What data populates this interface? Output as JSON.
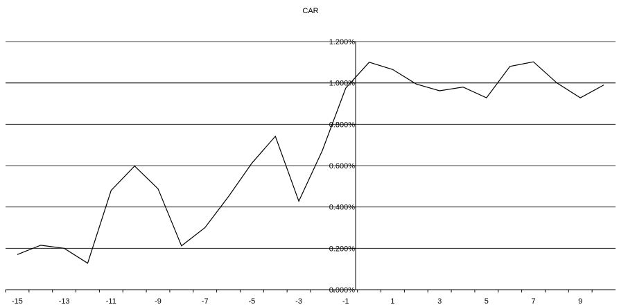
{
  "chart_data": {
    "type": "line",
    "title": "CAR",
    "xlabel": "",
    "ylabel": "",
    "x": [
      -15,
      -14,
      -13,
      -12,
      -11,
      -10,
      -9,
      -8,
      -7,
      -6,
      -5,
      -4,
      -3,
      -2,
      -1,
      0,
      1,
      2,
      3,
      4,
      5,
      6,
      7,
      8,
      9,
      10
    ],
    "series": [
      {
        "values": [
          0.17,
          0.215,
          0.2,
          0.128,
          0.48,
          0.598,
          0.488,
          0.212,
          0.3,
          0.45,
          0.612,
          0.742,
          0.428,
          0.672,
          0.975,
          1.1,
          1.065,
          0.995,
          0.962,
          0.98,
          0.928,
          1.08,
          1.102,
          1.0,
          0.928,
          0.99
        ]
      }
    ],
    "ylim": [
      0,
      1.2
    ],
    "yticks": [
      0,
      0.2,
      0.4,
      0.6,
      0.8,
      1.0,
      1.2
    ],
    "ytick_labels": [
      "0.000%",
      "0.200%",
      "0.400%",
      "0.600%",
      "0.800%",
      "1.000%",
      "1.200%"
    ],
    "xticks": [
      -15,
      -13,
      -11,
      -9,
      -7,
      -5,
      -3,
      -1,
      1,
      3,
      5,
      7,
      9
    ],
    "xtick_labels": [
      "-15",
      "-13",
      "-11",
      "-9",
      "-7",
      "-5",
      "-3",
      "-1",
      "1",
      "3",
      "5",
      "7",
      "9"
    ],
    "grid": true,
    "legend": "none",
    "colors": {
      "line": "#000000",
      "grid": "#000000",
      "background": "#ffffff"
    }
  }
}
